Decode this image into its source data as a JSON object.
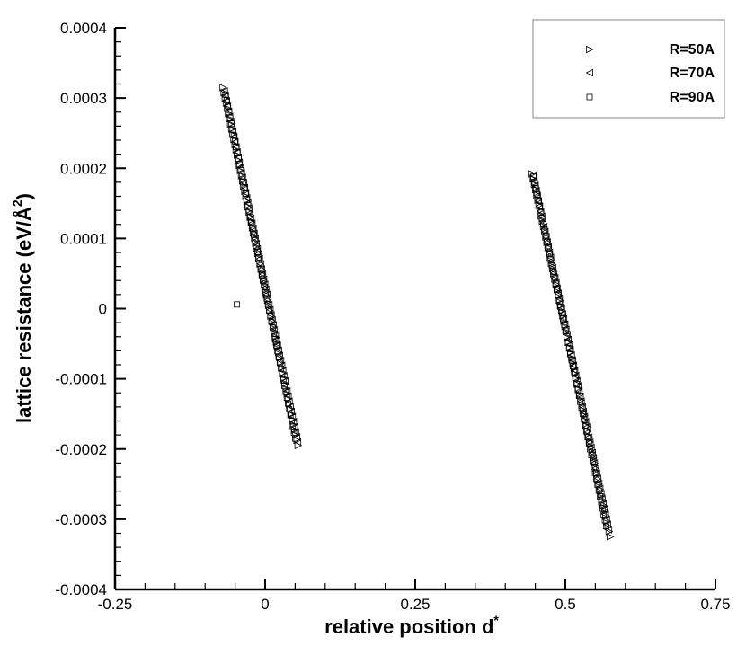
{
  "chart_data": {
    "type": "scatter",
    "xlabel": "relative position d",
    "xlabel_superscript": "*",
    "ylabel": "lattice resistance (eV/Å",
    "ylabel_superscript": "2",
    "ylabel_suffix": ")",
    "xlim": [
      -0.25,
      0.75
    ],
    "ylim": [
      -0.0004,
      0.0004
    ],
    "x_ticks": [
      {
        "value": -0.25,
        "label": "-0.25"
      },
      {
        "value": 0,
        "label": "0"
      },
      {
        "value": 0.25,
        "label": "0.25"
      },
      {
        "value": 0.5,
        "label": "0.5"
      },
      {
        "value": 0.75,
        "label": "0.75"
      }
    ],
    "y_ticks": [
      {
        "value": -0.0004,
        "label": "-0.0004"
      },
      {
        "value": -0.0003,
        "label": "-0.0003"
      },
      {
        "value": -0.0002,
        "label": "-0.0002"
      },
      {
        "value": -0.0001,
        "label": "-0.0001"
      },
      {
        "value": 0,
        "label": "0"
      },
      {
        "value": 0.0001,
        "label": "0.0001"
      },
      {
        "value": 0.0002,
        "label": "0.0002"
      },
      {
        "value": 0.0003,
        "label": "0.0003"
      },
      {
        "value": 0.0004,
        "label": "0.0004"
      }
    ],
    "grid": false,
    "legend_position": "top-right",
    "series": [
      {
        "name": "R=50A",
        "marker": "triangle-right",
        "segments": [
          {
            "x_start": -0.07,
            "y_start": 0.000315,
            "x_end": 0.055,
            "y_end": -0.000195,
            "count": 70
          },
          {
            "x_start": 0.445,
            "y_start": 0.000192,
            "x_end": 0.575,
            "y_end": -0.000325,
            "count": 70
          }
        ]
      },
      {
        "name": "R=70A",
        "marker": "triangle-left",
        "segments": [
          {
            "x_start": -0.068,
            "y_start": 0.00031,
            "x_end": 0.054,
            "y_end": -0.00019,
            "count": 70
          },
          {
            "x_start": 0.446,
            "y_start": 0.00019,
            "x_end": 0.572,
            "y_end": -0.000315,
            "count": 70
          }
        ]
      },
      {
        "name": "R=90A",
        "marker": "square",
        "segments": [
          {
            "x_start": -0.066,
            "y_start": 0.000305,
            "x_end": 0.05,
            "y_end": -0.000185,
            "count": 60
          },
          {
            "x_start": 0.447,
            "y_start": 0.000188,
            "x_end": 0.568,
            "y_end": -0.00031,
            "count": 60
          }
        ],
        "points": [
          {
            "x": -0.047,
            "y": 6e-06
          }
        ]
      }
    ]
  }
}
